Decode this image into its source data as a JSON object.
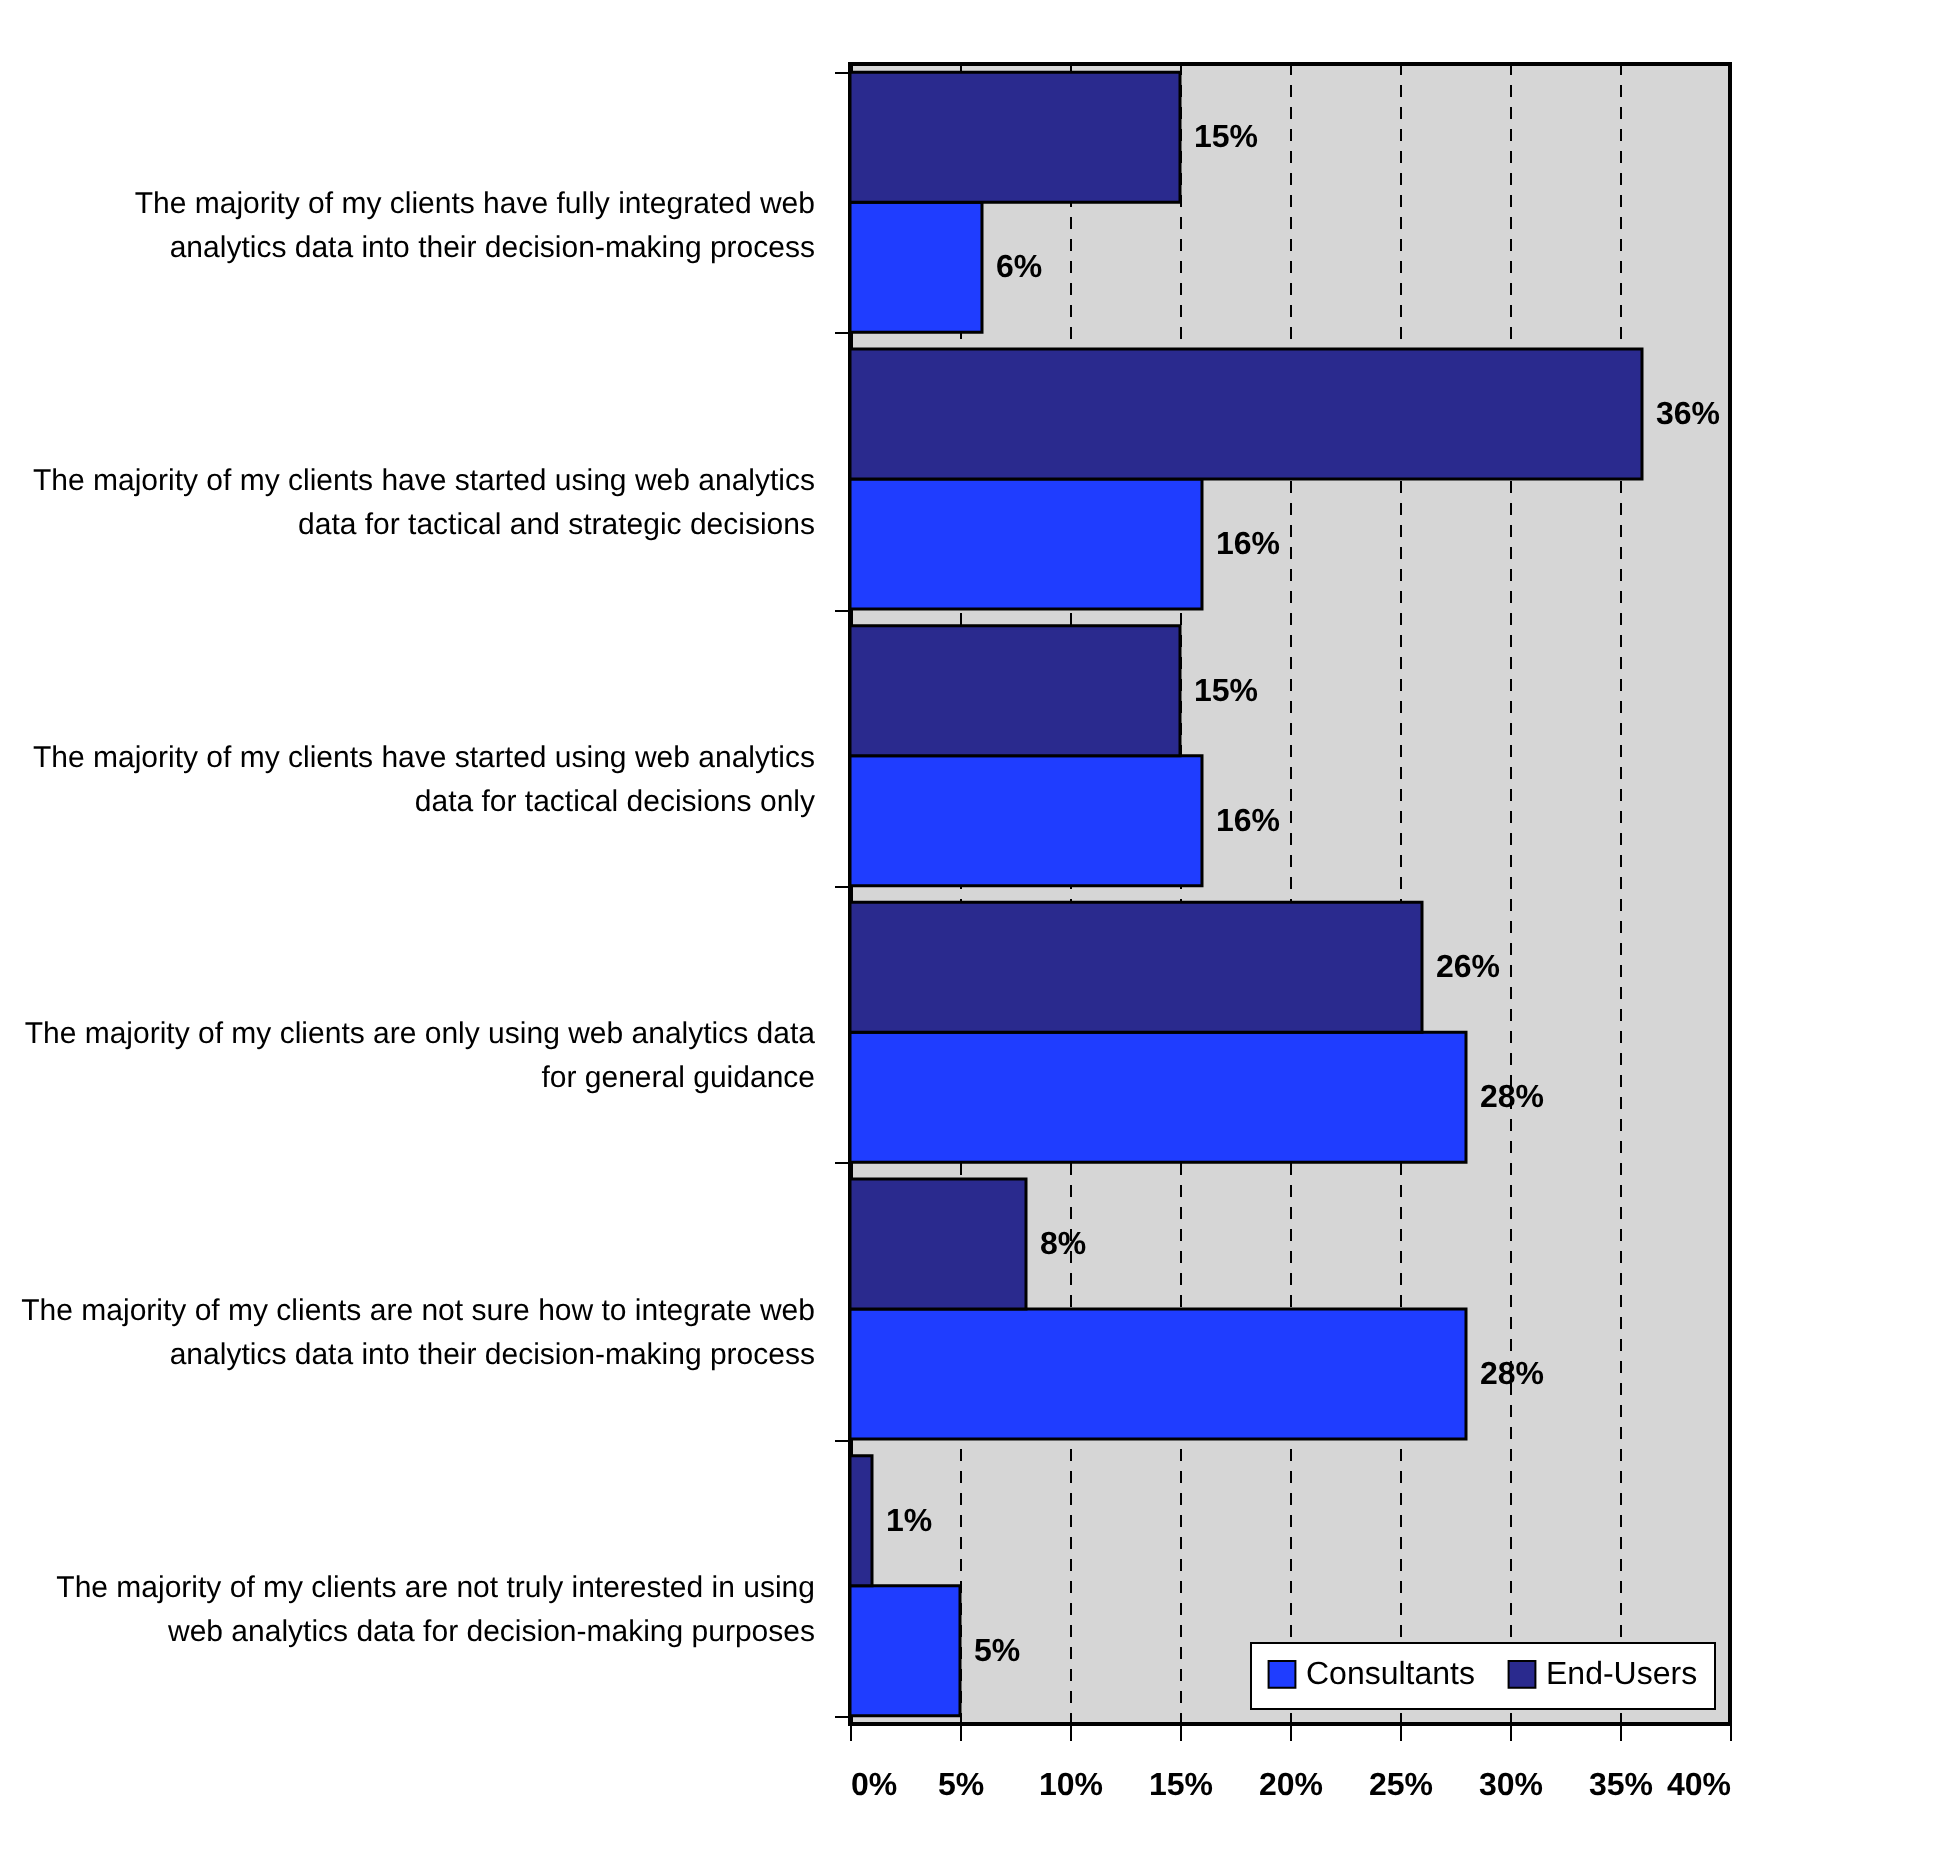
{
  "chart_data": {
    "type": "bar",
    "orientation": "horizontal",
    "categories": [
      "The majority of my clients have fully integrated web analytics data into their decision-making process",
      "The majority of my clients have started using web analytics data for tactical and strategic decisions",
      "The majority of my clients have started using web analytics data for tactical decisions only",
      "The majority of my clients are only using web analytics data for general guidance",
      "The majority of my clients are not sure how to integrate web analytics data into their decision-making process",
      "The majority of my clients are not truly interested in using web analytics data for decision-making purposes"
    ],
    "series": [
      {
        "name": "Consultants",
        "color": "#1f3dff",
        "values": [
          6,
          16,
          16,
          28,
          28,
          5
        ],
        "value_labels": [
          "6%",
          "16%",
          "16%",
          "28%",
          "28%",
          "5%"
        ]
      },
      {
        "name": "End-Users",
        "color": "#2a2a8e",
        "values": [
          15,
          36,
          15,
          26,
          8,
          1
        ],
        "value_labels": [
          "15%",
          "36%",
          "15%",
          "26%",
          "8%",
          "1%"
        ]
      }
    ],
    "xlim": [
      0,
      40
    ],
    "xticks": [
      {
        "value": 0,
        "label": "0%"
      },
      {
        "value": 5,
        "label": "5%"
      },
      {
        "value": 10,
        "label": "10%"
      },
      {
        "value": 15,
        "label": "15%"
      },
      {
        "value": 20,
        "label": "20%"
      },
      {
        "value": 25,
        "label": "25%"
      },
      {
        "value": 30,
        "label": "30%"
      },
      {
        "value": 35,
        "label": "35%"
      },
      {
        "value": 40,
        "label": "40%"
      }
    ],
    "grid": "x",
    "legend": "bottom right"
  }
}
